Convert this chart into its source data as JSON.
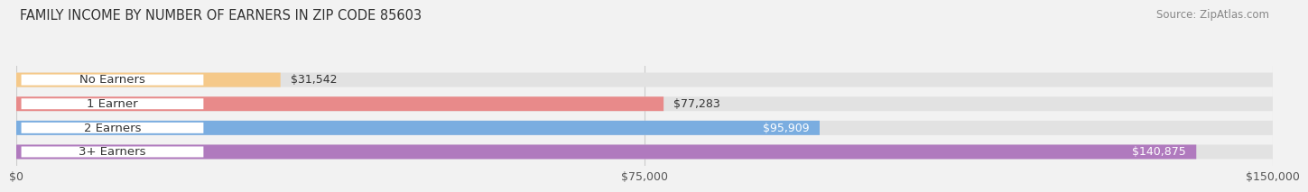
{
  "title": "FAMILY INCOME BY NUMBER OF EARNERS IN ZIP CODE 85603",
  "source": "Source: ZipAtlas.com",
  "categories": [
    "No Earners",
    "1 Earner",
    "2 Earners",
    "3+ Earners"
  ],
  "values": [
    31542,
    77283,
    95909,
    140875
  ],
  "bar_colors": [
    "#f5c98a",
    "#e88a8a",
    "#7aade0",
    "#b07abe"
  ],
  "max_value": 150000,
  "x_ticks": [
    0,
    75000,
    150000
  ],
  "x_tick_labels": [
    "$0",
    "$75,000",
    "$150,000"
  ],
  "background_color": "#f2f2f2",
  "bar_bg_color": "#e2e2e2",
  "title_fontsize": 10.5,
  "source_fontsize": 8.5,
  "label_fontsize": 9.5,
  "value_fontsize": 9,
  "tick_fontsize": 9
}
